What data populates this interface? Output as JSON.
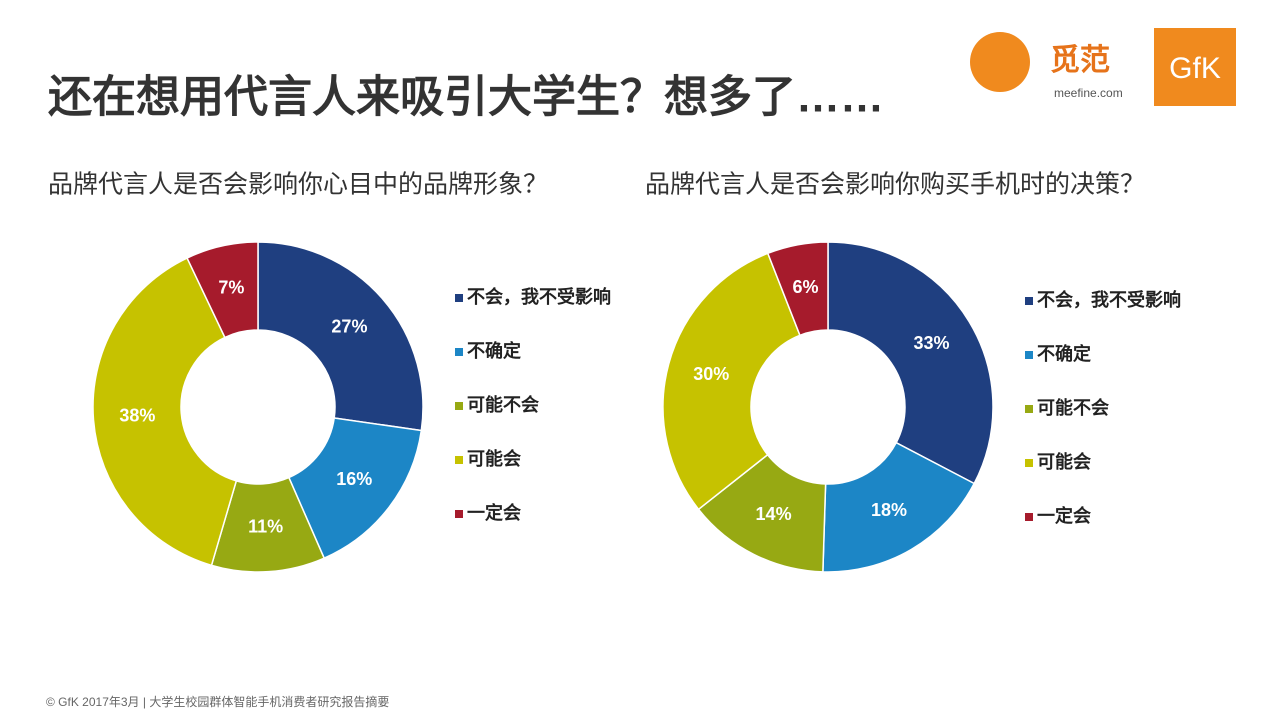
{
  "slide_title": "还在想用代言人来吸引大学生？想多了……",
  "logo": {
    "brand": "觅范",
    "site": "meefine.com",
    "partner": "GfK"
  },
  "footer": "© GfK 2017年3月 | 大学生校园群体智能手机消费者研究报告摘要",
  "chart_data": [
    {
      "type": "donut",
      "title": "品牌代言人是否会影响你心目中的品牌形象？",
      "categories": [
        "不会，我不受影响",
        "不确定",
        "可能不会",
        "可能会",
        "一定会"
      ],
      "colors": [
        "#1f3f80",
        "#1c86c6",
        "#97a913",
        "#c6c200",
        "#a61b2c"
      ],
      "values": [
        27,
        16,
        11,
        38,
        7
      ],
      "value_labels": [
        "27%",
        "16%",
        "11%",
        "38%",
        "7%"
      ]
    },
    {
      "type": "donut",
      "title": "品牌代言人是否会影响你购买手机时的决策？",
      "categories": [
        "不会，我不受影响",
        "不确定",
        "可能不会",
        "可能会",
        "一定会"
      ],
      "colors": [
        "#1f3f80",
        "#1c86c6",
        "#97a913",
        "#c6c200",
        "#a61b2c"
      ],
      "values": [
        33,
        18,
        14,
        30,
        6
      ],
      "value_labels": [
        "33%",
        "18%",
        "14%",
        "30%",
        "6%"
      ]
    }
  ]
}
